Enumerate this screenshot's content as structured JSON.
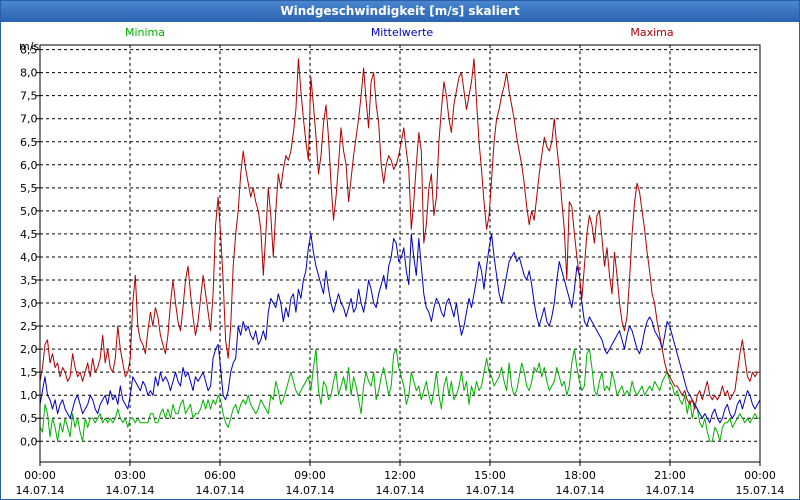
{
  "window": {
    "title": "Windgeschwindigkeit [m/s] skaliert"
  },
  "chart_data": {
    "type": "line",
    "title": "Windgeschwindigkeit [m/s] skaliert",
    "ylabel": "m/s",
    "ylim": [
      -0.45,
      8.6
    ],
    "xlim": [
      0,
      288
    ],
    "yticks": [
      "0,0",
      "0,5",
      "1,0",
      "1,5",
      "2,0",
      "2,5",
      "3,0",
      "3,5",
      "4,0",
      "4,5",
      "5,0",
      "5,5",
      "6,0",
      "6,5",
      "7,0",
      "7,5",
      "8,0",
      "8,5"
    ],
    "xticks": [
      {
        "pos": 0,
        "time": "00:00",
        "date": "14.07.14"
      },
      {
        "pos": 36,
        "time": "03:00",
        "date": "14.07.14"
      },
      {
        "pos": 72,
        "time": "06:00",
        "date": "14.07.14"
      },
      {
        "pos": 108,
        "time": "09:00",
        "date": "14.07.14"
      },
      {
        "pos": 144,
        "time": "12:00",
        "date": "14.07.14"
      },
      {
        "pos": 180,
        "time": "15:00",
        "date": "14.07.14"
      },
      {
        "pos": 216,
        "time": "18:00",
        "date": "14.07.14"
      },
      {
        "pos": 252,
        "time": "21:00",
        "date": "14.07.14"
      },
      {
        "pos": 288,
        "time": "00:00",
        "date": "15.07.14"
      }
    ],
    "grid": true,
    "legend_position": "top",
    "series": [
      {
        "name": "Minima",
        "color": "#00b000",
        "values": [
          0.3,
          0.2,
          0.8,
          0.6,
          0.1,
          0.5,
          0.3,
          0.0,
          0.4,
          0.2,
          0.5,
          0.3,
          0.1,
          0.6,
          0.3,
          0.5,
          0.2,
          0.0,
          0.5,
          0.3,
          0.5,
          0.5,
          0.4,
          0.5,
          0.6,
          0.4,
          0.5,
          0.4,
          0.5,
          0.4,
          0.5,
          0.7,
          0.5,
          0.4,
          0.5,
          0.3,
          0.5,
          0.5,
          0.4,
          0.5,
          0.4,
          0.4,
          0.4,
          0.4,
          0.6,
          0.6,
          0.4,
          0.4,
          0.6,
          0.7,
          0.5,
          0.7,
          0.5,
          0.8,
          0.6,
          0.6,
          0.8,
          0.9,
          0.6,
          0.7,
          0.8,
          0.5,
          0.6,
          0.6,
          0.7,
          0.9,
          0.7,
          0.9,
          0.7,
          0.9,
          0.8,
          1.0,
          0.9,
          0.6,
          0.4,
          0.3,
          0.5,
          0.7,
          0.8,
          0.6,
          0.8,
          0.9,
          0.8,
          1.0,
          0.8,
          0.7,
          0.6,
          0.7,
          0.9,
          0.8,
          0.7,
          0.6,
          1.0,
          0.9,
          1.3,
          1.1,
          0.8,
          0.9,
          1.1,
          1.3,
          1.5,
          1.3,
          1.1,
          1.0,
          1.1,
          1.2,
          1.3,
          1.4,
          1.1,
          1.6,
          2.0,
          1.1,
          0.8,
          1.3,
          1.2,
          0.9,
          1.0,
          1.3,
          1.5,
          1.0,
          1.2,
          1.4,
          1.1,
          1.6,
          1.0,
          1.4,
          1.2,
          0.9,
          0.6,
          1.2,
          1.5,
          1.3,
          1.2,
          1.5,
          0.9,
          1.1,
          1.4,
          1.6,
          1.3,
          1.0,
          1.2,
          1.9,
          2.0,
          1.6,
          1.4,
          1.2,
          0.8,
          1.0,
          1.5,
          1.3,
          1.1,
          1.2,
          0.9,
          1.1,
          1.3,
          1.0,
          0.8,
          1.1,
          1.5,
          1.0,
          0.7,
          1.2,
          1.4,
          1.0,
          1.3,
          0.9,
          1.0,
          1.2,
          1.5,
          1.1,
          1.3,
          0.8,
          1.2,
          1.0,
          1.3,
          1.1,
          1.2,
          1.5,
          1.8,
          1.5,
          1.4,
          1.2,
          1.3,
          1.4,
          1.6,
          1.3,
          1.1,
          1.7,
          1.2,
          1.0,
          1.1,
          1.4,
          1.7,
          1.5,
          1.2,
          1.1,
          1.3,
          1.6,
          1.5,
          1.7,
          1.4,
          1.6,
          1.3,
          1.1,
          1.2,
          1.3,
          1.6,
          1.4,
          1.2,
          1.3,
          1.0,
          1.2,
          1.7,
          2.0,
          1.6,
          1.3,
          1.1,
          1.2,
          1.9,
          2.0,
          1.6,
          1.1,
          1.0,
          1.3,
          1.5,
          1.1,
          1.2,
          1.1,
          1.5,
          1.3,
          1.0,
          1.1,
          1.2,
          1.0,
          1.1,
          1.0,
          1.3,
          1.1,
          1.0,
          1.1,
          1.2,
          1.0,
          1.1,
          1.2,
          1.1,
          1.3,
          1.2,
          1.1,
          1.3,
          1.4,
          1.5,
          1.3,
          1.2,
          1.0,
          1.1,
          0.9,
          0.8,
          1.0,
          0.6,
          0.9,
          0.5,
          0.8,
          0.7,
          0.4,
          0.3,
          0.5,
          0.2,
          0.0,
          0.0,
          0.3,
          0.2,
          0.0,
          0.3,
          0.4,
          0.4,
          0.5,
          0.3,
          0.4,
          0.5,
          0.6,
          0.5,
          0.4,
          0.5,
          0.4,
          0.5,
          0.6,
          0.5,
          0.5
        ]
      },
      {
        "name": "Mittelwerte",
        "color": "#0000c0",
        "values": [
          0.8,
          1.1,
          1.4,
          1.0,
          0.9,
          0.7,
          0.9,
          0.6,
          0.8,
          0.9,
          0.7,
          0.6,
          0.5,
          0.7,
          0.9,
          1.0,
          0.8,
          0.6,
          0.7,
          0.8,
          1.0,
          0.9,
          0.7,
          0.6,
          0.8,
          0.9,
          1.0,
          0.8,
          1.1,
          0.9,
          1.0,
          0.8,
          1.2,
          0.9,
          0.8,
          0.7,
          1.0,
          1.4,
          1.3,
          1.2,
          1.1,
          1.3,
          1.2,
          1.0,
          1.1,
          1.0,
          1.4,
          1.2,
          1.5,
          1.3,
          1.4,
          1.3,
          1.1,
          1.3,
          1.5,
          1.3,
          1.2,
          1.6,
          1.4,
          1.5,
          1.3,
          1.1,
          1.4,
          1.3,
          1.4,
          1.5,
          1.3,
          1.1,
          1.2,
          1.8,
          2.0,
          2.1,
          1.6,
          1.0,
          0.9,
          1.1,
          1.5,
          1.7,
          1.8,
          2.5,
          2.3,
          2.6,
          2.4,
          2.5,
          2.3,
          2.2,
          2.4,
          2.1,
          2.2,
          2.4,
          2.2,
          2.8,
          3.1,
          3.0,
          2.9,
          3.2,
          3.0,
          2.6,
          2.9,
          2.7,
          3.1,
          3.2,
          2.8,
          3.3,
          3.1,
          3.5,
          3.7,
          4.2,
          4.5,
          4.1,
          3.8,
          3.6,
          3.4,
          3.2,
          3.7,
          3.3,
          3.0,
          2.8,
          3.0,
          3.2,
          3.0,
          2.9,
          2.7,
          2.9,
          3.1,
          2.8,
          2.9,
          3.3,
          3.0,
          2.8,
          3.1,
          3.5,
          3.3,
          3.0,
          2.9,
          3.2,
          3.4,
          3.6,
          3.3,
          3.8,
          4.0,
          4.4,
          4.3,
          3.9,
          4.0,
          4.2,
          3.7,
          3.4,
          4.5,
          4.0,
          3.6,
          4.4,
          3.8,
          3.2,
          2.9,
          2.8,
          2.6,
          2.9,
          3.1,
          3.0,
          2.8,
          2.7,
          3.0,
          3.1,
          2.9,
          2.7,
          3.0,
          2.6,
          2.3,
          2.5,
          2.8,
          3.1,
          2.9,
          3.2,
          3.5,
          3.9,
          3.7,
          3.3,
          3.8,
          4.2,
          4.5,
          4.0,
          3.6,
          3.2,
          3.0,
          3.3,
          3.6,
          3.9,
          4.0,
          4.1,
          3.9,
          4.0,
          3.8,
          3.6,
          3.5,
          3.7,
          3.4,
          3.0,
          2.7,
          2.5,
          2.7,
          2.9,
          2.6,
          2.5,
          2.7,
          3.0,
          3.5,
          3.9,
          3.7,
          3.5,
          3.3,
          3.1,
          2.9,
          3.3,
          3.8,
          3.6,
          3.0,
          2.6,
          2.5,
          2.7,
          2.6,
          2.5,
          2.4,
          2.3,
          2.2,
          2.0,
          1.9,
          2.0,
          2.1,
          2.2,
          2.3,
          2.4,
          2.2,
          2.0,
          2.3,
          2.5,
          2.4,
          2.2,
          2.0,
          1.9,
          2.1,
          2.4,
          2.6,
          2.7,
          2.6,
          2.4,
          2.3,
          2.2,
          2.0,
          2.3,
          2.6,
          2.5,
          2.3,
          2.1,
          1.9,
          1.7,
          1.5,
          1.3,
          1.1,
          1.0,
          0.9,
          0.8,
          0.7,
          0.6,
          0.5,
          0.6,
          0.5,
          0.4,
          0.6,
          0.7,
          0.5,
          0.4,
          0.5,
          0.7,
          0.8,
          0.6,
          0.5,
          0.6,
          0.8,
          0.9,
          0.7,
          0.9,
          1.1,
          1.0,
          0.8,
          0.7,
          0.8,
          0.9
        ]
      },
      {
        "name": "Maxima",
        "color": "#b00000",
        "values": [
          1.3,
          1.6,
          2.1,
          2.2,
          1.7,
          1.9,
          1.6,
          1.7,
          1.4,
          1.6,
          1.5,
          1.3,
          1.4,
          1.9,
          1.6,
          1.4,
          1.5,
          1.3,
          1.5,
          1.7,
          1.4,
          1.8,
          1.5,
          1.6,
          1.8,
          2.3,
          1.7,
          2.0,
          1.6,
          1.5,
          1.8,
          2.5,
          2.0,
          1.7,
          1.4,
          1.5,
          1.8,
          3.0,
          3.6,
          2.5,
          2.2,
          2.1,
          1.9,
          2.4,
          2.8,
          2.5,
          2.9,
          2.7,
          2.3,
          2.1,
          1.9,
          2.3,
          3.0,
          3.5,
          3.0,
          2.6,
          2.4,
          2.9,
          3.5,
          3.8,
          3.2,
          2.7,
          2.3,
          2.6,
          3.1,
          3.6,
          3.2,
          2.8,
          2.4,
          3.2,
          4.7,
          5.3,
          4.5,
          3.5,
          2.2,
          1.8,
          2.5,
          3.8,
          4.5,
          5.0,
          5.8,
          6.3,
          5.9,
          5.6,
          5.3,
          5.5,
          5.2,
          5.0,
          4.6,
          3.6,
          4.5,
          5.5,
          4.9,
          4.0,
          5.0,
          5.8,
          5.5,
          5.9,
          6.2,
          6.1,
          6.3,
          6.7,
          7.2,
          8.3,
          7.6,
          7.0,
          6.5,
          6.1,
          7.9,
          7.3,
          6.6,
          5.8,
          6.2,
          6.9,
          7.3,
          6.6,
          5.6,
          4.8,
          5.3,
          6.0,
          6.8,
          6.3,
          6.0,
          5.2,
          5.7,
          6.2,
          6.6,
          7.0,
          7.5,
          8.1,
          7.4,
          6.8,
          7.8,
          8.0,
          7.3,
          6.9,
          6.0,
          5.6,
          6.0,
          6.2,
          6.1,
          5.9,
          6.0,
          6.2,
          6.5,
          6.8,
          6.3,
          5.9,
          4.6,
          5.2,
          6.0,
          6.7,
          6.3,
          4.3,
          4.7,
          5.5,
          5.8,
          4.9,
          5.3,
          6.5,
          7.2,
          7.8,
          7.5,
          7.0,
          6.7,
          7.3,
          7.6,
          7.9,
          8.0,
          7.6,
          7.2,
          7.5,
          7.8,
          8.3,
          7.4,
          6.5,
          5.9,
          5.2,
          4.6,
          4.9,
          5.7,
          6.5,
          7.0,
          7.2,
          7.5,
          7.7,
          8.0,
          7.6,
          7.3,
          7.0,
          6.6,
          6.3,
          6.0,
          5.6,
          5.1,
          4.7,
          5.0,
          4.8,
          5.3,
          5.8,
          6.2,
          6.6,
          6.4,
          6.3,
          6.5,
          7.0,
          6.4,
          5.9,
          5.2,
          4.6,
          3.5,
          5.2,
          5.1,
          4.5,
          4.0,
          3.6,
          3.1,
          3.8,
          4.5,
          4.9,
          4.7,
          4.3,
          4.9,
          5.0,
          4.4,
          3.8,
          4.2,
          3.6,
          3.2,
          4.1,
          3.6,
          3.0,
          2.6,
          2.4,
          2.7,
          3.5,
          4.5,
          5.2,
          5.6,
          5.4,
          5.0,
          4.6,
          4.1,
          3.7,
          3.2,
          3.0,
          2.6,
          2.3,
          2.0,
          1.7,
          1.5,
          1.4,
          1.3,
          1.2,
          1.2,
          1.1,
          1.0,
          1.1,
          0.9,
          0.8,
          0.9,
          0.7,
          1.0,
          1.1,
          0.9,
          1.1,
          1.3,
          1.0,
          0.9,
          1.0,
          0.9,
          1.0,
          1.2,
          1.0,
          1.1,
          0.9,
          1.0,
          1.1,
          1.5,
          1.9,
          2.2,
          1.8,
          1.4,
          1.3,
          1.5,
          1.4,
          1.5,
          1.5
        ]
      }
    ]
  }
}
